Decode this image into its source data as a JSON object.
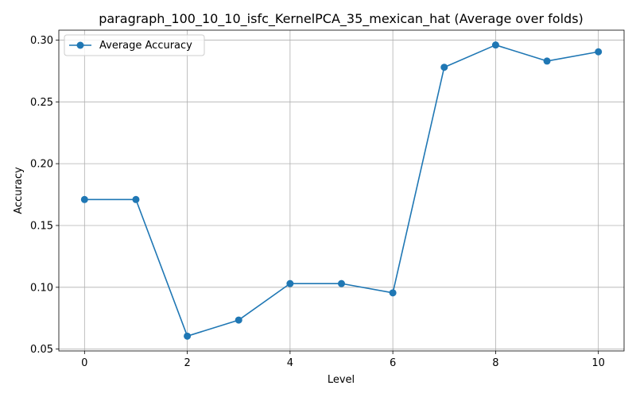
{
  "chart_data": {
    "type": "line",
    "title": "paragraph_100_10_10_isfc_KernelPCA_35_mexican_hat (Average over folds)",
    "xlabel": "Level",
    "ylabel": "Accuracy",
    "x": [
      0,
      1,
      2,
      3,
      4,
      5,
      6,
      7,
      8,
      9,
      10
    ],
    "series": [
      {
        "name": "Average Accuracy",
        "values": [
          0.171,
          0.171,
          0.0605,
          0.0735,
          0.103,
          0.103,
          0.0955,
          0.278,
          0.296,
          0.283,
          0.2905
        ],
        "color": "#1f77b4",
        "marker": "circle"
      }
    ],
    "xlim": [
      -0.5,
      10.5
    ],
    "ylim": [
      0.0485,
      0.308
    ],
    "xticks": [
      0,
      2,
      4,
      6,
      8,
      10
    ],
    "xtick_labels": [
      "0",
      "2",
      "4",
      "6",
      "8",
      "10"
    ],
    "yticks": [
      0.05,
      0.1,
      0.15,
      0.2,
      0.25,
      0.3
    ],
    "ytick_labels": [
      "0.05",
      "0.10",
      "0.15",
      "0.20",
      "0.25",
      "0.30"
    ],
    "grid": true,
    "legend_position": "top-left"
  }
}
